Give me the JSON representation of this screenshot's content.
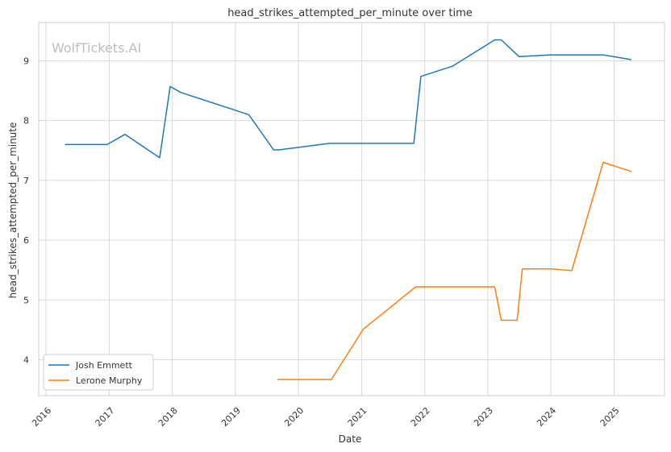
{
  "chart_data": {
    "type": "line",
    "title": "head_strikes_attempted_per_minute over time",
    "xlabel": "Date",
    "ylabel": "head_strikes_attempted_per_minute",
    "watermark": "WolfTickets.AI",
    "x_ticks": [
      "2016",
      "2017",
      "2018",
      "2019",
      "2020",
      "2021",
      "2022",
      "2023",
      "2024",
      "2025"
    ],
    "y_ticks": [
      "4",
      "5",
      "6",
      "7",
      "8",
      "9"
    ],
    "xlim": [
      "2015-11-20",
      "2025-10-20"
    ],
    "ylim": [
      3.4,
      9.64
    ],
    "grid": true,
    "legend_position": "lower-left",
    "series": [
      {
        "name": "Josh Emmett",
        "color": "#1f77b4",
        "points": [
          [
            "2016-04-20",
            7.6
          ],
          [
            "2016-12-20",
            7.6
          ],
          [
            "2017-04-02",
            7.77
          ],
          [
            "2017-10-20",
            7.38
          ],
          [
            "2017-12-20",
            8.57
          ],
          [
            "2018-02-20",
            8.47
          ],
          [
            "2019-03-20",
            8.1
          ],
          [
            "2019-08-10",
            7.51
          ],
          [
            "2019-09-10",
            7.51
          ],
          [
            "2020-07-01",
            7.62
          ],
          [
            "2021-10-30",
            7.62
          ],
          [
            "2021-12-10",
            8.74
          ],
          [
            "2022-06-10",
            8.91
          ],
          [
            "2023-02-10",
            9.35
          ],
          [
            "2023-03-20",
            9.35
          ],
          [
            "2023-07-01",
            9.07
          ],
          [
            "2023-12-30",
            9.1
          ],
          [
            "2024-10-30",
            9.1
          ],
          [
            "2025-04-10",
            9.02
          ]
        ]
      },
      {
        "name": "Lerone Murphy",
        "color": "#ff7f0e",
        "points": [
          [
            "2019-09-01",
            3.67
          ],
          [
            "2020-07-10",
            3.67
          ],
          [
            "2021-01-10",
            4.51
          ],
          [
            "2021-11-10",
            5.22
          ],
          [
            "2023-02-10",
            5.22
          ],
          [
            "2023-03-20",
            4.66
          ],
          [
            "2023-06-20",
            4.66
          ],
          [
            "2023-07-20",
            5.52
          ],
          [
            "2024-01-01",
            5.52
          ],
          [
            "2024-05-01",
            5.49
          ],
          [
            "2024-10-30",
            7.3
          ],
          [
            "2025-04-10",
            7.15
          ]
        ]
      }
    ]
  }
}
